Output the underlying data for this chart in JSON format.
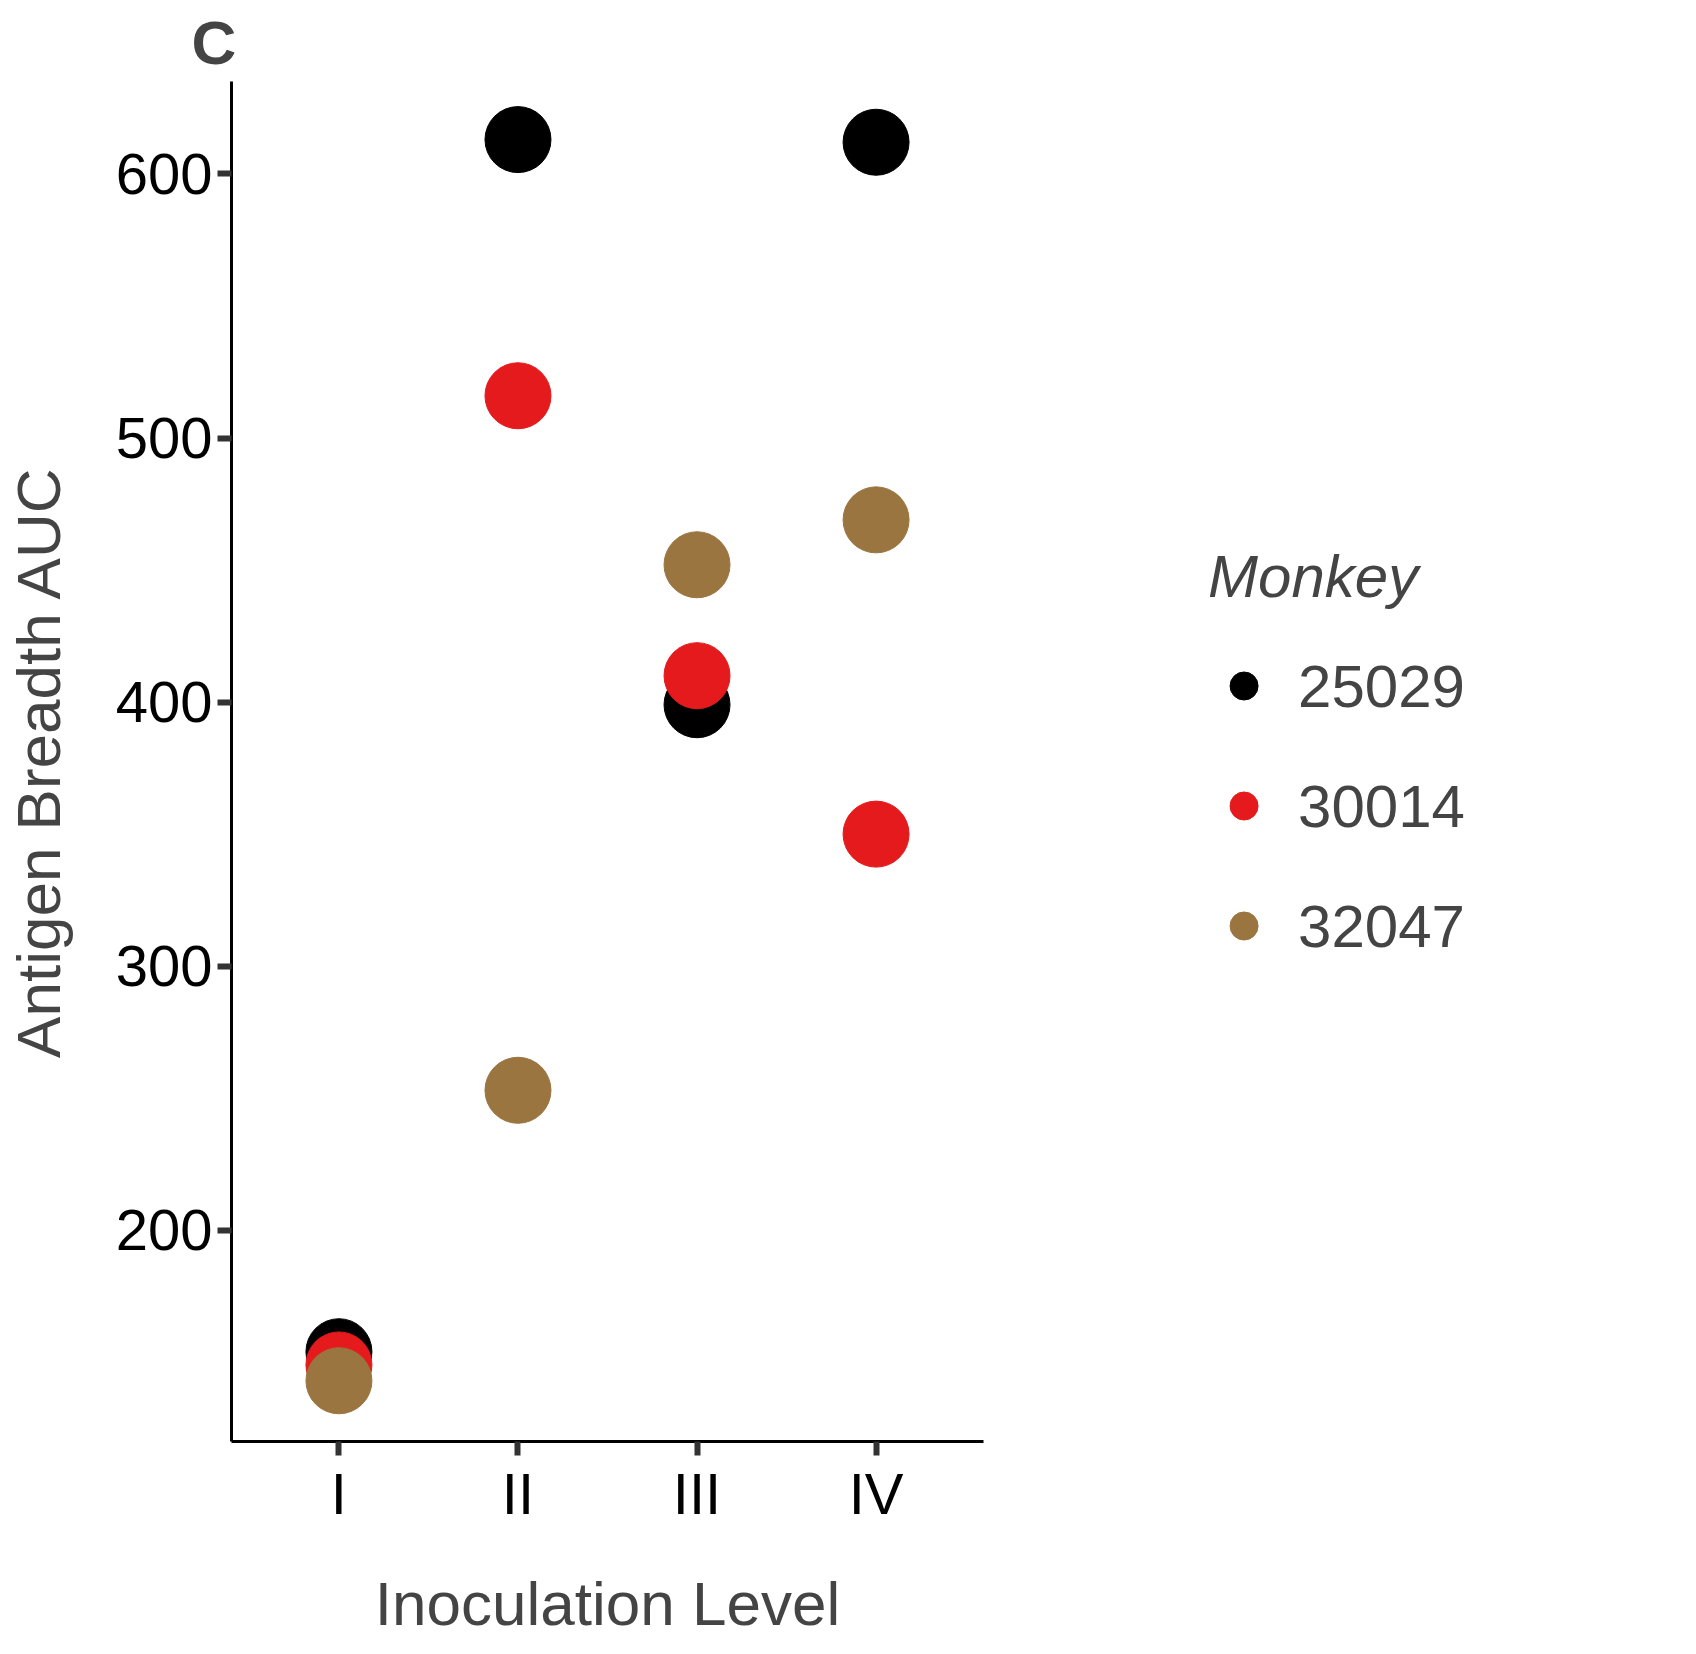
{
  "chart_data": {
    "type": "scatter",
    "annotations": [
      "C"
    ],
    "xlabel": "Inoculation Level",
    "ylabel": "Antigen Breadth AUC",
    "legend_title": "Monkey",
    "legend": "right",
    "marker": "circle",
    "grid": false,
    "categories": [
      "I",
      "II",
      "III",
      "IV"
    ],
    "ylim": [
      120,
      635
    ],
    "yticks": [
      200,
      300,
      400,
      500,
      600
    ],
    "series": [
      {
        "name": "25029",
        "color": "#000000",
        "values": [
          154,
          613,
          399,
          612
        ]
      },
      {
        "name": "30014",
        "color": "#e41a1c",
        "values": [
          149,
          516,
          410,
          350
        ]
      },
      {
        "name": "32047",
        "color": "#9a7540",
        "values": [
          143,
          253,
          452,
          469
        ]
      }
    ]
  }
}
